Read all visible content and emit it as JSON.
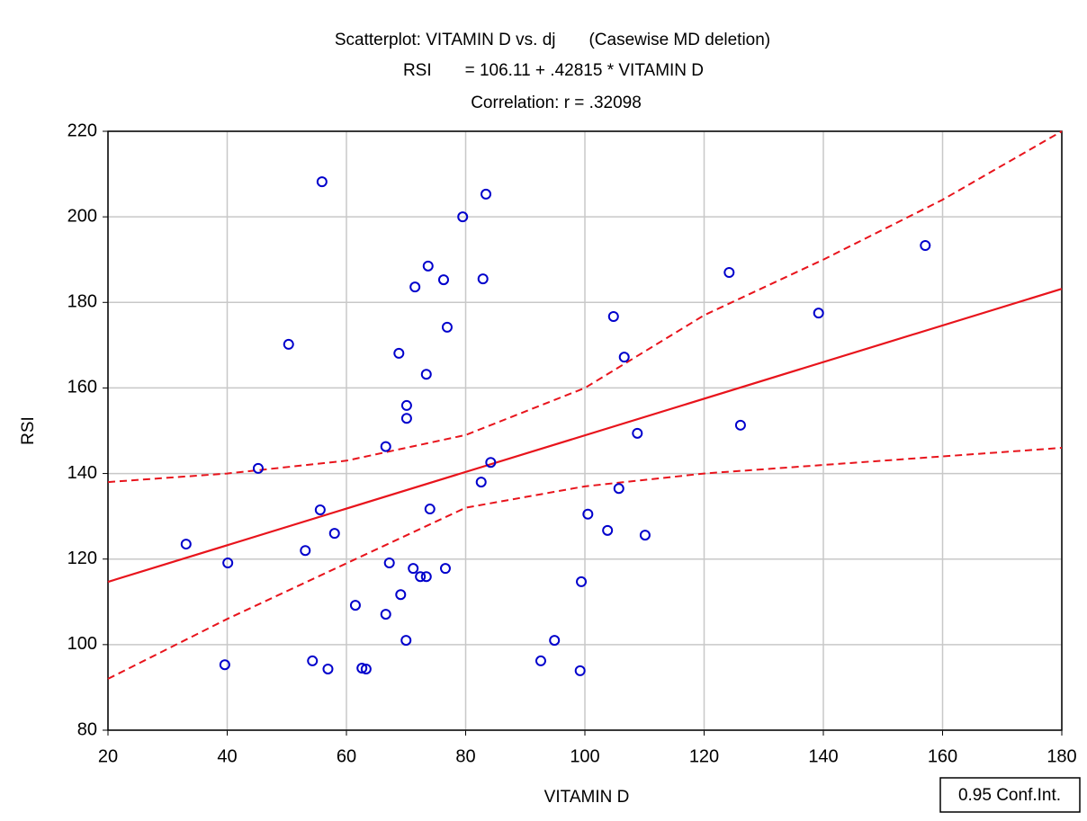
{
  "chart_data": {
    "type": "scatter",
    "title_lines": [
      "Scatterplot: VITAMIN D vs. dj       (Casewise MD deletion)",
      "RSI       = 106.11 + .42815 * VITAMIN D",
      "Correlation: r = .32098"
    ],
    "xlabel": "VITAMIN D",
    "ylabel": "RSI",
    "xlim": [
      20,
      180
    ],
    "xticks": [
      20,
      40,
      60,
      80,
      100,
      120,
      140,
      160,
      180
    ],
    "ylim": [
      80,
      220
    ],
    "yticks": [
      80,
      100,
      120,
      140,
      160,
      180,
      200,
      220
    ],
    "grid": true,
    "color": "#0000cc",
    "line_color": "#e8141c",
    "x": [
      33.1,
      40.1,
      39.6,
      45.2,
      50.3,
      55.9,
      55.6,
      53.1,
      58.0,
      54.3,
      56.9,
      61.5,
      62.6,
      63.3,
      66.6,
      66.6,
      67.2,
      68.8,
      69.1,
      70.1,
      70.1,
      70.0,
      71.5,
      71.2,
      72.4,
      73.4,
      73.4,
      73.7,
      74.0,
      76.3,
      76.9,
      76.6,
      79.5,
      82.9,
      83.4,
      82.6,
      84.2,
      92.6,
      94.9,
      99.4,
      99.2,
      100.5,
      103.8,
      104.8,
      105.7,
      106.6,
      108.8,
      110.1,
      124.2,
      126.1,
      139.2,
      157.1
    ],
    "y": [
      123.5,
      119.1,
      95.3,
      141.2,
      170.2,
      208.2,
      131.5,
      122.0,
      126.0,
      96.2,
      94.3,
      109.2,
      94.5,
      94.3,
      107.1,
      146.3,
      119.1,
      168.1,
      111.7,
      155.9,
      152.9,
      101.0,
      183.6,
      117.8,
      115.9,
      115.9,
      163.2,
      188.5,
      131.7,
      185.3,
      174.2,
      117.8,
      200.0,
      185.5,
      205.3,
      138.0,
      142.6,
      96.2,
      101.0,
      114.7,
      93.9,
      130.5,
      126.7,
      176.7,
      136.5,
      167.2,
      149.4,
      125.6,
      187.0,
      151.3,
      177.5,
      193.3
    ],
    "fit": {
      "intercept": 106.11,
      "slope": 0.42815
    },
    "ci_label": "0.95 Conf.Int.",
    "ci_x": [
      20,
      40,
      60,
      80,
      100,
      120,
      140,
      160,
      180
    ],
    "ci_upper": [
      138,
      140,
      143,
      149,
      160,
      177,
      190,
      204,
      220
    ],
    "ci_lower": [
      92,
      106,
      119,
      132,
      137,
      140,
      142,
      144,
      146
    ]
  }
}
